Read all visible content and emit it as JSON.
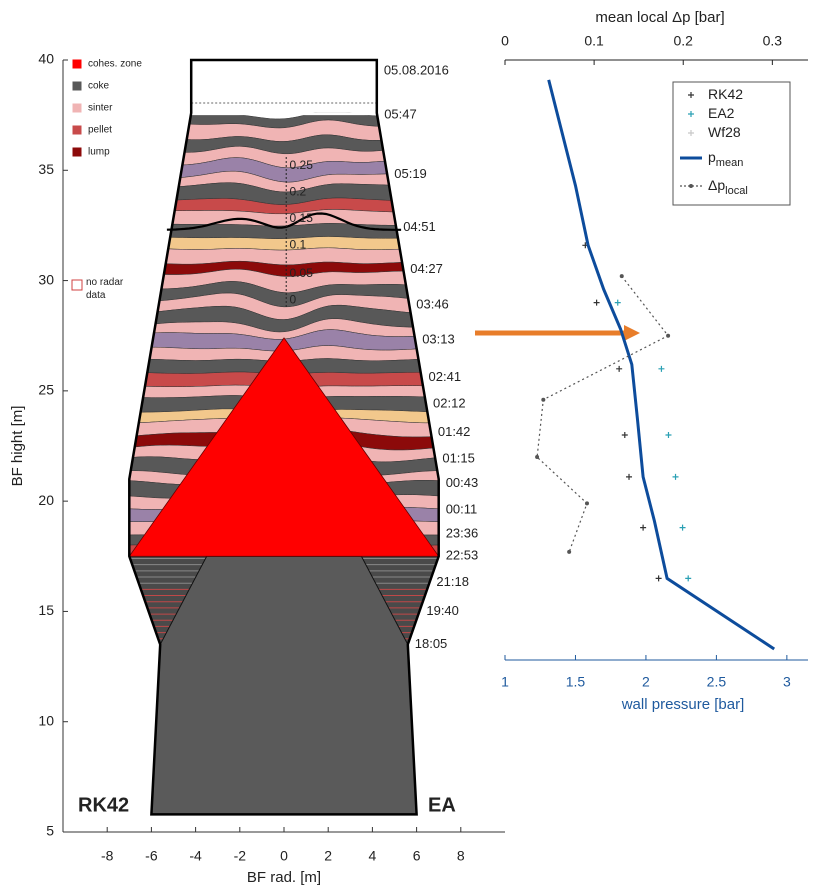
{
  "chart_data": [
    {
      "type": "furnace",
      "xlabel": "BF rad. [m]",
      "ylabel": "BF hight [m]",
      "xlim": [
        -10,
        10
      ],
      "ylim": [
        5,
        40
      ],
      "xticks": [
        -8,
        -6,
        -4,
        -2,
        0,
        2,
        4,
        6,
        8
      ],
      "yticks": [
        5,
        10,
        15,
        20,
        25,
        30,
        35,
        40
      ],
      "legend": [
        {
          "name": "cohes. zone",
          "color": "#ff0000"
        },
        {
          "name": "coke",
          "color": "#585858"
        },
        {
          "name": "sinter",
          "color": "#f0b4b4"
        },
        {
          "name": "pellet",
          "color": "#c84a4a"
        },
        {
          "name": "lump",
          "color": "#8c0a0a"
        },
        {
          "name": "no radar data",
          "color": "#d04040",
          "outline": true
        }
      ],
      "time_labels": {
        "labels": [
          "05.08.2016",
          "05:47",
          "05:19",
          "04:51",
          "04:27",
          "03:46",
          "03:13",
          "02:41",
          "02:12",
          "01:42",
          "01:15",
          "00:43",
          "00:11",
          "23:36",
          "22:53",
          "21:18",
          "19:40",
          "18:05"
        ],
        "heights": [
          39.5,
          37.5,
          34.8,
          32.4,
          30.5,
          28.9,
          27.3,
          25.6,
          24.4,
          23.1,
          21.9,
          20.8,
          19.6,
          18.5,
          17.5,
          16.3,
          15.0,
          13.5
        ]
      },
      "pressure_scale": {
        "values": [
          0.25,
          0.2,
          0.15,
          0.1,
          0.05,
          0
        ],
        "heights": [
          35.2,
          34.0,
          32.8,
          31.6,
          30.3,
          29.1
        ]
      },
      "side_labels": [
        "RK42",
        "EA"
      ]
    },
    {
      "type": "line",
      "xlabel": "wall pressure [bar]",
      "x2label": "mean local Δp [bar]",
      "xlim": [
        1,
        3.15
      ],
      "xticks": [
        1,
        1.5,
        2,
        2.5,
        3
      ],
      "x2lim": [
        0,
        0.34
      ],
      "x2ticks": [
        0,
        0.1,
        0.2,
        0.3
      ],
      "ylim": [
        12.8,
        40
      ],
      "legend": "upper right",
      "series": [
        {
          "name": "RK42",
          "color": "#333333",
          "marker": "+",
          "x": [
            1.57,
            1.65,
            1.81,
            1.85,
            1.88,
            1.98,
            2.09
          ],
          "y": [
            31.6,
            29.0,
            26.0,
            23.0,
            21.1,
            18.8,
            16.5
          ]
        },
        {
          "name": "EA2",
          "color": "#2aa0b4",
          "marker": "+",
          "x": [
            1.8,
            2.11,
            2.16,
            2.21,
            2.26,
            2.3
          ],
          "y": [
            29.0,
            26.0,
            23.0,
            21.1,
            18.8,
            16.5
          ]
        },
        {
          "name": "Wf28",
          "color": "#c8c8c8",
          "marker": "+",
          "x": [],
          "y": []
        },
        {
          "name": "p",
          "subscript": "mean",
          "color": "#0d4c9c",
          "line": "solid",
          "x": [
            1.31,
            1.5,
            1.59,
            1.7,
            1.82,
            1.9,
            1.94,
            1.98,
            2.06,
            2.15,
            2.91
          ],
          "y": [
            39.1,
            34.3,
            31.6,
            29.6,
            27.8,
            26.2,
            23.7,
            21.1,
            19.1,
            16.5,
            13.3
          ]
        },
        {
          "name": "Δp",
          "subscript": "local",
          "color": "#555555",
          "line": "dotted",
          "marker": "o",
          "axis": "x2",
          "x": [
            0.131,
            0.183,
            0.043,
            0.036,
            0.092,
            0.072
          ],
          "y": [
            30.2,
            27.5,
            24.6,
            22.0,
            19.9,
            17.7
          ]
        }
      ]
    }
  ]
}
